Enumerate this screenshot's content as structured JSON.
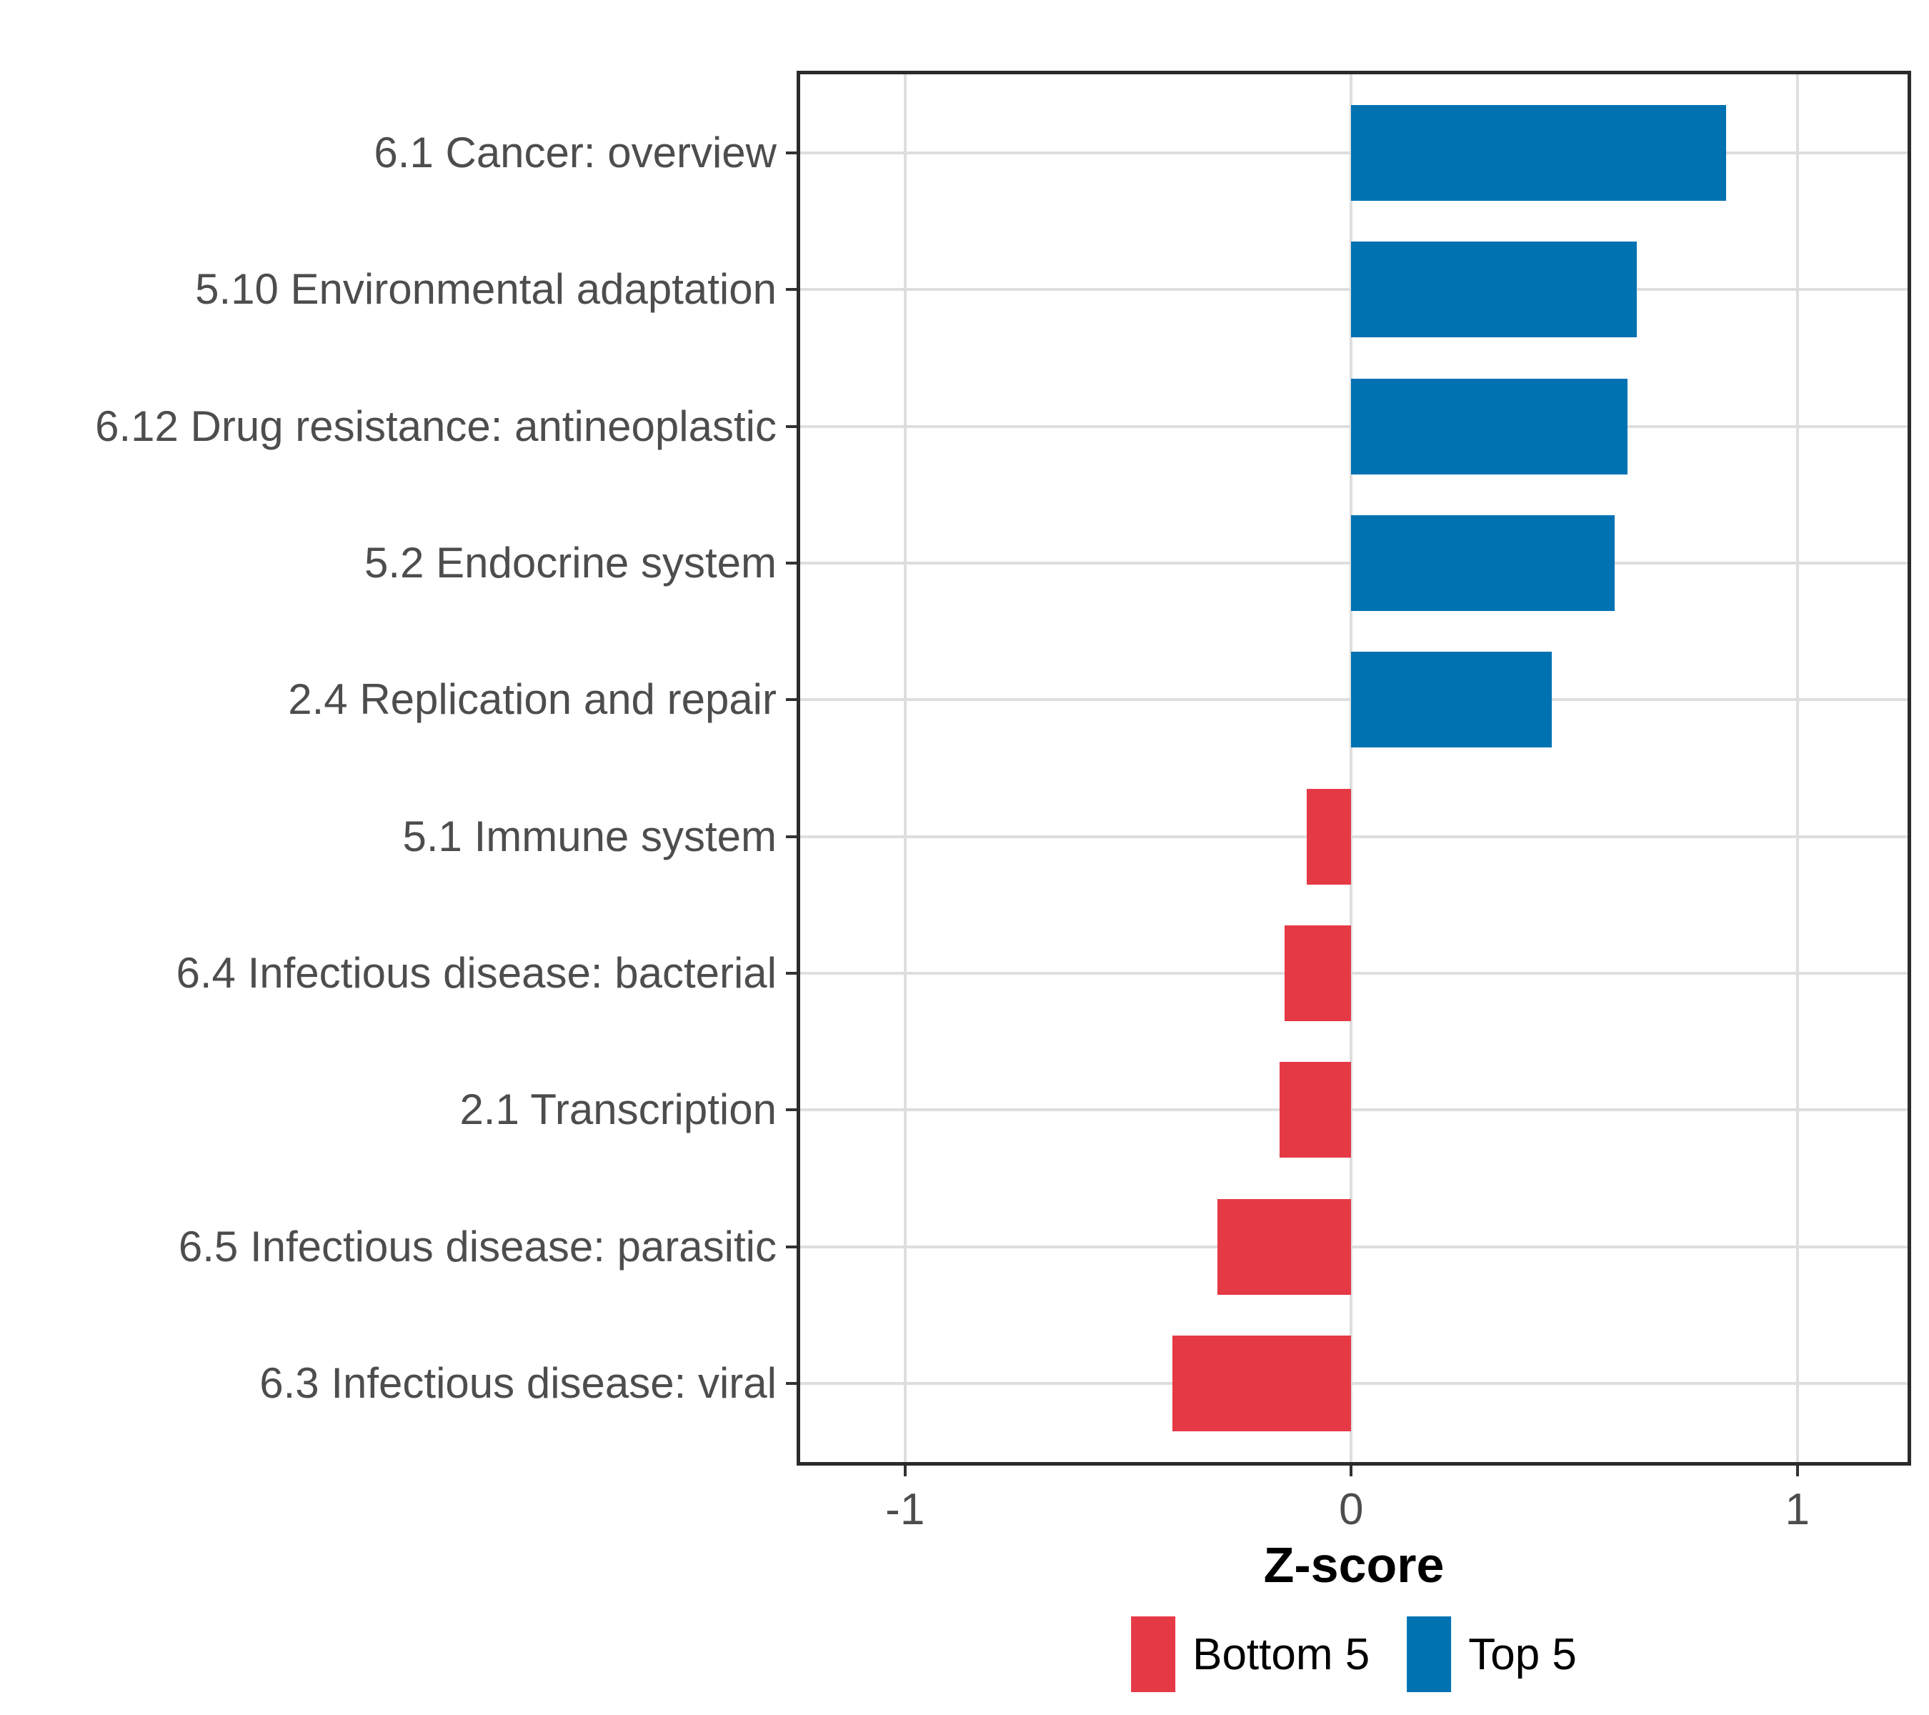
{
  "chart_data": {
    "type": "bar",
    "orientation": "horizontal",
    "title": "",
    "xlabel": "Z-score",
    "ylabel": "",
    "categories": [
      "6.1 Cancer: overview",
      "5.10 Environmental adaptation",
      "6.12 Drug resistance: antineoplastic",
      "5.2 Endocrine system",
      "2.4 Replication and repair",
      "5.1 Immune system",
      "6.4 Infectious disease: bacterial",
      "2.1 Transcription",
      "6.5 Infectious disease: parasitic",
      "6.3 Infectious disease: viral"
    ],
    "values": [
      0.84,
      0.64,
      0.62,
      0.59,
      0.45,
      -0.1,
      -0.15,
      -0.16,
      -0.3,
      -0.4
    ],
    "groups": [
      "Top 5",
      "Top 5",
      "Top 5",
      "Top 5",
      "Top 5",
      "Bottom 5",
      "Bottom 5",
      "Bottom 5",
      "Bottom 5",
      "Bottom 5"
    ],
    "xlim": [
      -1.243,
      1.255
    ],
    "x_ticks": [
      {
        "value": -1,
        "label": "-1"
      },
      {
        "value": 0,
        "label": "0"
      },
      {
        "value": 1,
        "label": "1"
      }
    ],
    "grid": "major-only",
    "legend_position": "bottom",
    "legend": [
      {
        "label": "Bottom 5",
        "color": "#E63946"
      },
      {
        "label": "Top 5",
        "color": "#0072B2"
      }
    ],
    "colors": {
      "Top 5": "#0072B2",
      "Bottom 5": "#E63946",
      "grid": "#DEDEDE",
      "panel_border": "#2B2B2B",
      "tick": "#333333",
      "tick_label": "#4D4D4D",
      "category_label": "#4D4D4D",
      "axis_title": "#000000"
    }
  }
}
